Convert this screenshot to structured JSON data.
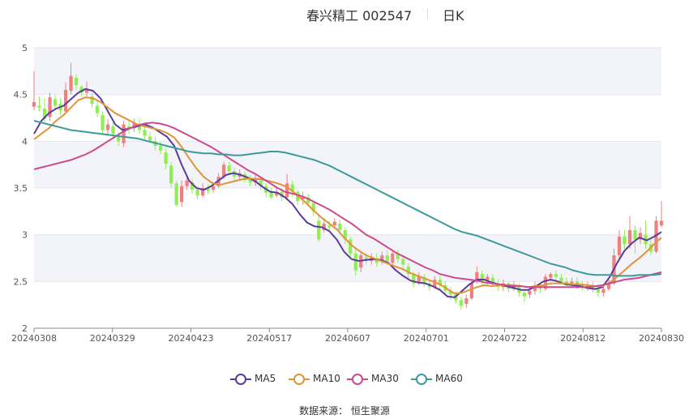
{
  "title": {
    "name": "春兴精工 002547",
    "period": "日K"
  },
  "source": {
    "label": "数据来源：",
    "value": "恒生聚源"
  },
  "chart_data": {
    "type": "candlestick",
    "ylim": [
      2,
      5
    ],
    "yticks": [
      "2",
      "2.5",
      "3",
      "3.5",
      "4",
      "4.5",
      "5"
    ],
    "xticks": [
      "20240308",
      "20240329",
      "20240423",
      "20240517",
      "20240607",
      "20240701",
      "20240722",
      "20240812",
      "20240830"
    ],
    "colors": {
      "up": "#f08080",
      "down": "#90ee55"
    },
    "candles": [
      [
        4.37,
        4.42,
        4.75,
        4.33
      ],
      [
        4.38,
        4.36,
        4.48,
        4.32
      ],
      [
        4.35,
        4.24,
        4.46,
        4.18
      ],
      [
        4.26,
        4.47,
        4.52,
        4.22
      ],
      [
        4.45,
        4.38,
        4.5,
        4.34
      ],
      [
        4.4,
        4.33,
        4.46,
        4.28
      ],
      [
        4.32,
        4.55,
        4.63,
        4.3
      ],
      [
        4.54,
        4.7,
        4.84,
        4.5
      ],
      [
        4.68,
        4.6,
        4.72,
        4.55
      ],
      [
        4.58,
        4.52,
        4.6,
        4.48
      ],
      [
        4.52,
        4.55,
        4.64,
        4.48
      ],
      [
        4.48,
        4.4,
        4.52,
        4.36
      ],
      [
        4.38,
        4.3,
        4.44,
        4.26
      ],
      [
        4.28,
        4.12,
        4.32,
        4.08
      ],
      [
        4.12,
        4.18,
        4.24,
        4.06
      ],
      [
        4.16,
        4.08,
        4.2,
        4.04
      ],
      [
        4.05,
        4.0,
        4.1,
        3.95
      ],
      [
        3.98,
        4.18,
        4.22,
        3.94
      ],
      [
        4.16,
        4.13,
        4.22,
        4.08
      ],
      [
        4.14,
        4.2,
        4.24,
        4.1
      ],
      [
        4.18,
        4.12,
        4.24,
        4.08
      ],
      [
        4.12,
        4.06,
        4.16,
        4.02
      ],
      [
        4.05,
        4.01,
        4.1,
        3.98
      ],
      [
        4.0,
        3.95,
        4.05,
        3.9
      ],
      [
        3.95,
        3.9,
        4.0,
        3.86
      ],
      [
        3.88,
        3.76,
        3.92,
        3.7
      ],
      [
        3.74,
        3.55,
        3.78,
        3.5
      ],
      [
        3.55,
        3.32,
        3.58,
        3.3
      ],
      [
        3.35,
        3.52,
        3.58,
        3.3
      ],
      [
        3.52,
        3.58,
        3.62,
        3.48
      ],
      [
        3.56,
        3.48,
        3.6,
        3.44
      ],
      [
        3.48,
        3.42,
        3.52,
        3.38
      ],
      [
        3.42,
        3.5,
        3.55,
        3.4
      ],
      [
        3.5,
        3.47,
        3.54,
        3.44
      ],
      [
        3.48,
        3.52,
        3.56,
        3.45
      ],
      [
        3.52,
        3.62,
        3.66,
        3.5
      ],
      [
        3.62,
        3.75,
        3.78,
        3.6
      ],
      [
        3.74,
        3.68,
        3.78,
        3.64
      ],
      [
        3.68,
        3.62,
        3.72,
        3.58
      ],
      [
        3.62,
        3.66,
        3.7,
        3.58
      ],
      [
        3.65,
        3.6,
        3.68,
        3.56
      ],
      [
        3.6,
        3.56,
        3.64,
        3.52
      ],
      [
        3.56,
        3.6,
        3.64,
        3.52
      ],
      [
        3.58,
        3.52,
        3.62,
        3.48
      ],
      [
        3.52,
        3.45,
        3.55,
        3.4
      ],
      [
        3.45,
        3.4,
        3.5,
        3.38
      ],
      [
        3.42,
        3.46,
        3.5,
        3.4
      ],
      [
        3.46,
        3.4,
        3.5,
        3.36
      ],
      [
        3.4,
        3.55,
        3.65,
        3.38
      ],
      [
        3.54,
        3.46,
        3.58,
        3.4
      ],
      [
        3.46,
        3.36,
        3.48,
        3.32
      ],
      [
        3.38,
        3.4,
        3.46,
        3.32
      ],
      [
        3.4,
        3.34,
        3.44,
        3.3
      ],
      [
        3.34,
        3.25,
        3.36,
        3.2
      ],
      [
        3.15,
        2.95,
        3.2,
        2.92
      ],
      [
        3.05,
        3.12,
        3.18,
        3.02
      ],
      [
        3.1,
        3.08,
        3.15,
        3.04
      ],
      [
        3.1,
        3.14,
        3.18,
        3.06
      ],
      [
        3.12,
        3.05,
        3.16,
        3.02
      ],
      [
        3.05,
        2.95,
        3.08,
        2.9
      ],
      [
        2.95,
        2.8,
        2.98,
        2.75
      ],
      [
        2.8,
        2.62,
        2.85,
        2.56
      ],
      [
        2.65,
        2.78,
        2.82,
        2.6
      ],
      [
        2.76,
        2.72,
        2.8,
        2.68
      ],
      [
        2.72,
        2.76,
        2.8,
        2.68
      ],
      [
        2.75,
        2.7,
        2.8,
        2.66
      ],
      [
        2.72,
        2.78,
        2.82,
        2.68
      ],
      [
        2.78,
        2.72,
        2.84,
        2.68
      ],
      [
        2.7,
        2.8,
        2.84,
        2.66
      ],
      [
        2.8,
        2.74,
        2.84,
        2.7
      ],
      [
        2.74,
        2.68,
        2.78,
        2.64
      ],
      [
        2.66,
        2.58,
        2.7,
        2.54
      ],
      [
        2.58,
        2.48,
        2.6,
        2.44
      ],
      [
        2.5,
        2.56,
        2.6,
        2.46
      ],
      [
        2.55,
        2.48,
        2.58,
        2.44
      ],
      [
        2.48,
        2.44,
        2.52,
        2.4
      ],
      [
        2.44,
        2.52,
        2.56,
        2.42
      ],
      [
        2.52,
        2.46,
        2.56,
        2.42
      ],
      [
        2.46,
        2.4,
        2.5,
        2.36
      ],
      [
        2.4,
        2.36,
        2.44,
        2.3
      ],
      [
        2.36,
        2.3,
        2.4,
        2.26
      ],
      [
        2.3,
        2.24,
        2.34,
        2.2
      ],
      [
        2.26,
        2.32,
        2.36,
        2.22
      ],
      [
        2.32,
        2.48,
        2.52,
        2.3
      ],
      [
        2.5,
        2.6,
        2.66,
        2.48
      ],
      [
        2.58,
        2.5,
        2.62,
        2.46
      ],
      [
        2.5,
        2.55,
        2.58,
        2.46
      ],
      [
        2.54,
        2.48,
        2.58,
        2.44
      ],
      [
        2.48,
        2.44,
        2.52,
        2.4
      ],
      [
        2.44,
        2.48,
        2.52,
        2.4
      ],
      [
        2.48,
        2.42,
        2.5,
        2.38
      ],
      [
        2.42,
        2.45,
        2.5,
        2.4
      ],
      [
        2.44,
        2.38,
        2.48,
        2.34
      ],
      [
        2.38,
        2.34,
        2.4,
        2.28
      ],
      [
        2.36,
        2.4,
        2.44,
        2.32
      ],
      [
        2.4,
        2.46,
        2.5,
        2.36
      ],
      [
        2.44,
        2.42,
        2.48,
        2.38
      ],
      [
        2.42,
        2.55,
        2.58,
        2.4
      ],
      [
        2.54,
        2.58,
        2.6,
        2.5
      ],
      [
        2.58,
        2.55,
        2.62,
        2.5
      ],
      [
        2.54,
        2.5,
        2.58,
        2.46
      ],
      [
        2.5,
        2.48,
        2.54,
        2.44
      ],
      [
        2.48,
        2.5,
        2.54,
        2.44
      ],
      [
        2.5,
        2.46,
        2.54,
        2.42
      ],
      [
        2.46,
        2.44,
        2.5,
        2.4
      ],
      [
        2.44,
        2.46,
        2.5,
        2.4
      ],
      [
        2.46,
        2.42,
        2.5,
        2.38
      ],
      [
        2.42,
        2.38,
        2.46,
        2.34
      ],
      [
        2.38,
        2.42,
        2.48,
        2.34
      ],
      [
        2.42,
        2.48,
        2.52,
        2.4
      ],
      [
        2.48,
        2.78,
        2.85,
        2.46
      ],
      [
        2.78,
        2.98,
        3.05,
        2.74
      ],
      [
        2.98,
        2.9,
        3.05,
        2.85
      ],
      [
        2.9,
        3.05,
        3.2,
        2.85
      ],
      [
        3.05,
        2.95,
        3.1,
        2.8
      ],
      [
        2.95,
        3.02,
        3.08,
        2.9
      ],
      [
        3.0,
        2.9,
        3.15,
        2.85
      ],
      [
        2.9,
        2.82,
        2.95,
        2.78
      ],
      [
        2.82,
        3.15,
        3.2,
        2.8
      ],
      [
        3.1,
        3.15,
        3.36,
        3.08
      ]
    ],
    "series": [
      {
        "name": "MA5",
        "color": "#5b3c9c",
        "values": [
          4.08,
          4.22,
          4.3,
          4.35,
          4.38,
          4.45,
          4.52,
          4.56,
          4.54,
          4.46,
          4.32,
          4.18,
          4.12,
          4.14,
          4.16,
          4.18,
          4.15,
          4.1,
          4.05,
          3.95,
          3.75,
          3.58,
          3.5,
          3.48,
          3.52,
          3.58,
          3.64,
          3.66,
          3.64,
          3.61,
          3.57,
          3.51,
          3.46,
          3.45,
          3.4,
          3.33,
          3.22,
          3.13,
          3.09,
          3.08,
          3.04,
          2.95,
          2.82,
          2.74,
          2.72,
          2.73,
          2.74,
          2.73,
          2.7,
          2.62,
          2.56,
          2.51,
          2.49,
          2.48,
          2.45,
          2.41,
          2.34,
          2.33,
          2.4,
          2.47,
          2.52,
          2.52,
          2.49,
          2.47,
          2.45,
          2.43,
          2.41,
          2.41,
          2.45,
          2.5,
          2.52,
          2.5,
          2.47,
          2.46,
          2.45,
          2.43,
          2.42,
          2.44,
          2.55,
          2.7,
          2.83,
          2.91,
          2.97,
          2.94,
          2.98,
          3.03
        ]
      },
      {
        "name": "MA10",
        "color": "#e0943a",
        "values": [
          4.02,
          4.08,
          4.14,
          4.22,
          4.28,
          4.36,
          4.44,
          4.47,
          4.46,
          4.42,
          4.36,
          4.3,
          4.26,
          4.22,
          4.18,
          4.16,
          4.14,
          4.12,
          4.09,
          4.04,
          3.94,
          3.82,
          3.71,
          3.62,
          3.56,
          3.53,
          3.55,
          3.57,
          3.59,
          3.6,
          3.6,
          3.59,
          3.57,
          3.55,
          3.52,
          3.47,
          3.4,
          3.33,
          3.25,
          3.18,
          3.12,
          3.06,
          2.97,
          2.89,
          2.83,
          2.78,
          2.75,
          2.72,
          2.69,
          2.66,
          2.63,
          2.59,
          2.56,
          2.53,
          2.5,
          2.47,
          2.42,
          2.37,
          2.38,
          2.41,
          2.44,
          2.46,
          2.45,
          2.46,
          2.46,
          2.46,
          2.45,
          2.44,
          2.45,
          2.46,
          2.48,
          2.48,
          2.48,
          2.47,
          2.47,
          2.46,
          2.45,
          2.45,
          2.49,
          2.55,
          2.62,
          2.69,
          2.75,
          2.82,
          2.9,
          2.97
        ]
      },
      {
        "name": "MA30",
        "color": "#cc4b8f",
        "values": [
          3.7,
          3.72,
          3.74,
          3.76,
          3.78,
          3.8,
          3.83,
          3.86,
          3.9,
          3.95,
          4.0,
          4.05,
          4.1,
          4.14,
          4.17,
          4.19,
          4.2,
          4.19,
          4.17,
          4.14,
          4.1,
          4.06,
          4.02,
          3.98,
          3.94,
          3.89,
          3.84,
          3.79,
          3.74,
          3.69,
          3.65,
          3.6,
          3.55,
          3.5,
          3.46,
          3.44,
          3.42,
          3.39,
          3.35,
          3.31,
          3.27,
          3.22,
          3.17,
          3.12,
          3.06,
          3.0,
          2.96,
          2.91,
          2.86,
          2.81,
          2.77,
          2.73,
          2.69,
          2.65,
          2.62,
          2.58,
          2.56,
          2.54,
          2.53,
          2.52,
          2.51,
          2.49,
          2.48,
          2.47,
          2.46,
          2.45,
          2.45,
          2.44,
          2.44,
          2.44,
          2.44,
          2.44,
          2.44,
          2.44,
          2.44,
          2.44,
          2.45,
          2.46,
          2.48,
          2.5,
          2.52,
          2.53,
          2.54,
          2.56,
          2.58,
          2.6
        ]
      },
      {
        "name": "MA60",
        "color": "#3d9a9c",
        "values": [
          4.22,
          4.2,
          4.18,
          4.16,
          4.14,
          4.12,
          4.11,
          4.1,
          4.09,
          4.08,
          4.07,
          4.06,
          4.05,
          4.04,
          4.03,
          4.01,
          3.99,
          3.97,
          3.95,
          3.93,
          3.91,
          3.89,
          3.88,
          3.87,
          3.87,
          3.86,
          3.86,
          3.85,
          3.85,
          3.86,
          3.87,
          3.88,
          3.89,
          3.89,
          3.88,
          3.86,
          3.84,
          3.82,
          3.8,
          3.77,
          3.74,
          3.7,
          3.66,
          3.62,
          3.58,
          3.54,
          3.5,
          3.46,
          3.42,
          3.38,
          3.34,
          3.3,
          3.26,
          3.22,
          3.18,
          3.14,
          3.1,
          3.06,
          3.03,
          3.01,
          2.99,
          2.96,
          2.93,
          2.9,
          2.87,
          2.84,
          2.81,
          2.78,
          2.75,
          2.72,
          2.69,
          2.67,
          2.65,
          2.62,
          2.6,
          2.58,
          2.57,
          2.57,
          2.57,
          2.56,
          2.56,
          2.56,
          2.57,
          2.57,
          2.57,
          2.58
        ]
      }
    ]
  }
}
